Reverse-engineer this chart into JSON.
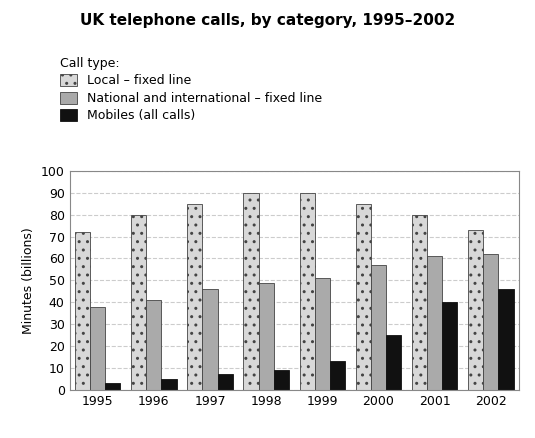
{
  "title": "UK telephone calls, by category, 1995–2002",
  "ylabel": "Minutes (billions)",
  "legend_title": "Call type:",
  "categories": [
    1995,
    1996,
    1997,
    1998,
    1999,
    2000,
    2001,
    2002
  ],
  "local_fixed": [
    72,
    80,
    85,
    90,
    90,
    85,
    80,
    73
  ],
  "national_fixed": [
    38,
    41,
    46,
    49,
    51,
    57,
    61,
    62
  ],
  "mobiles": [
    3,
    5,
    7,
    9,
    13,
    25,
    40,
    46
  ],
  "ylim": [
    0,
    100
  ],
  "yticks": [
    0,
    10,
    20,
    30,
    40,
    50,
    60,
    70,
    80,
    90,
    100
  ],
  "bar_width": 0.27,
  "legend_labels": [
    "Local – fixed line",
    "National and international – fixed line",
    "Mobiles (all calls)"
  ],
  "background_color": "#ffffff",
  "grid_color": "#cccccc",
  "local_facecolor": "#d8d8d8",
  "national_facecolor": "#aaaaaa",
  "mobiles_facecolor": "#111111",
  "title_fontsize": 11,
  "axis_fontsize": 9,
  "legend_fontsize": 9
}
